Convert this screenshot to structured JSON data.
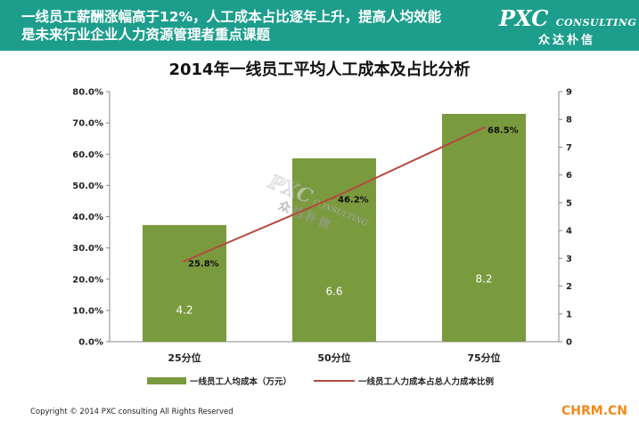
{
  "banner": {
    "line1": "一线员工薪酬涨幅高于12%，人工成本占比逐年上升，提高人均效能",
    "line2": "是未来行业企业人力资源管理者重点课题"
  },
  "logo": {
    "main": "PXC",
    "small": "CONSULTING",
    "sub": "众达朴信"
  },
  "watermark": {
    "main": "PXC",
    "small": "CONSULTING",
    "sub": "众达朴信"
  },
  "chart_data": {
    "type": "bar",
    "title": "2014年一线员工平均人工成本及占比分析",
    "categories": [
      "25分位",
      "50分位",
      "75分位"
    ],
    "series": [
      {
        "name": "一线员工人均成本（万元）",
        "kind": "bar",
        "axis": "right",
        "values": [
          4.2,
          6.6,
          8.2
        ],
        "labels": [
          "4.2",
          "6.6",
          "8.2"
        ],
        "color": "#7a9a3e"
      },
      {
        "name": "一线员工人力成本占总人力成本比例",
        "kind": "line",
        "axis": "left",
        "values": [
          25.8,
          46.2,
          68.5
        ],
        "labels": [
          "25.8%",
          "46.2%",
          "68.5%"
        ],
        "color": "#b5493f"
      }
    ],
    "y_left": {
      "min": 0,
      "max": 80,
      "ticks": [
        "0.0%",
        "10.0%",
        "20.0%",
        "30.0%",
        "40.0%",
        "50.0%",
        "60.0%",
        "70.0%",
        "80.0%"
      ]
    },
    "y_right": {
      "min": 0,
      "max": 9,
      "ticks": [
        "0",
        "1",
        "2",
        "3",
        "4",
        "5",
        "6",
        "7",
        "8",
        "9"
      ]
    },
    "legend_position": "bottom",
    "grid": false
  },
  "footer": "Copyright © 2014  PXC consulting All Rights Reserved",
  "site": "CHRM.CN"
}
